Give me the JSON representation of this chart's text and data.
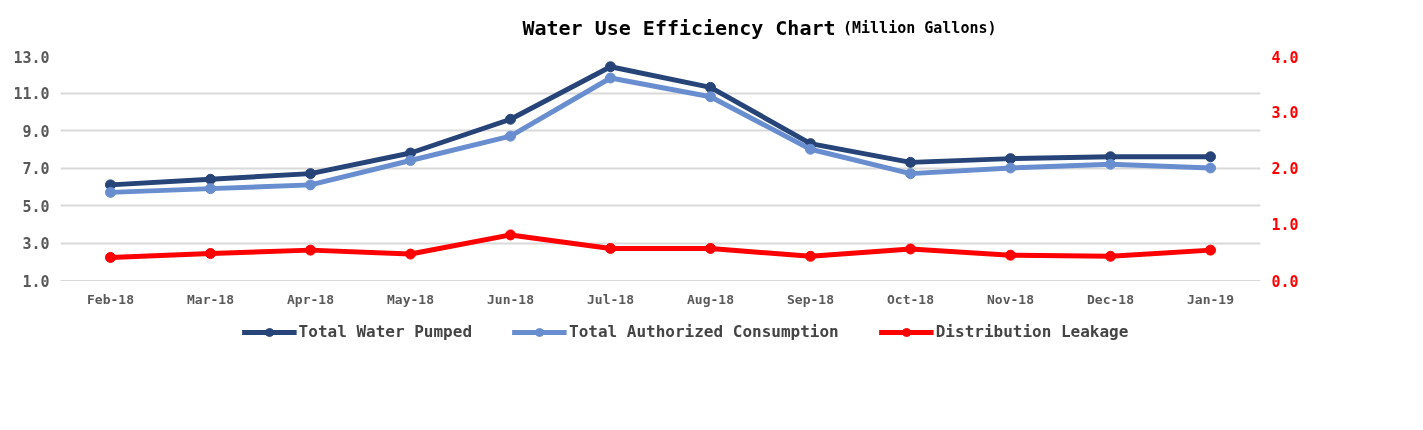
{
  "chart_data": {
    "type": "line",
    "title": "Water Use Efficiency Chart",
    "subtitle": "(Million Gallons)",
    "categories": [
      "Feb-18",
      "Mar-18",
      "Apr-18",
      "May-18",
      "Jun-18",
      "Jul-18",
      "Aug-18",
      "Sep-18",
      "Oct-18",
      "Nov-18",
      "Dec-18",
      "Jan-19"
    ],
    "series": [
      {
        "name": "Total Water Pumped",
        "color": "#264478",
        "values": [
          6.1,
          6.4,
          6.7,
          7.8,
          9.6,
          12.4,
          11.3,
          8.3,
          7.3,
          7.5,
          7.6,
          7.6
        ]
      },
      {
        "name": "Total Authorized Consumption",
        "color": "#698ed0",
        "values": [
          5.7,
          5.9,
          6.1,
          7.4,
          8.7,
          11.8,
          10.8,
          8.0,
          6.7,
          7.0,
          7.2,
          7.0
        ]
      },
      {
        "name": "Distribution Leakage",
        "color": "#ff0000",
        "axis": "y2",
        "values": [
          0.41,
          0.48,
          0.54,
          0.47,
          0.81,
          0.57,
          0.57,
          0.43,
          0.56,
          0.45,
          0.43,
          0.54
        ]
      }
    ],
    "ylim": [
      1,
      13
    ],
    "yticks": [
      {
        "value": 1,
        "label": "1.0"
      },
      {
        "value": 3,
        "label": "3.0"
      },
      {
        "value": 5,
        "label": "5.0"
      },
      {
        "value": 7,
        "label": "7.0"
      },
      {
        "value": 9,
        "label": "9.0"
      },
      {
        "value": 11,
        "label": "11.0"
      },
      {
        "value": 13,
        "label": "13.0"
      }
    ],
    "y2lim": [
      0,
      4
    ],
    "y2ticks": [
      {
        "value": 0,
        "label": "0.0"
      },
      {
        "value": 1,
        "label": "1.0"
      },
      {
        "value": 2,
        "label": "2.0"
      },
      {
        "value": 3,
        "label": "3.0"
      },
      {
        "value": 4,
        "label": "4.0"
      }
    ],
    "grid": "y",
    "legend": "bottom",
    "marker": "circle",
    "line_style": "solid"
  }
}
